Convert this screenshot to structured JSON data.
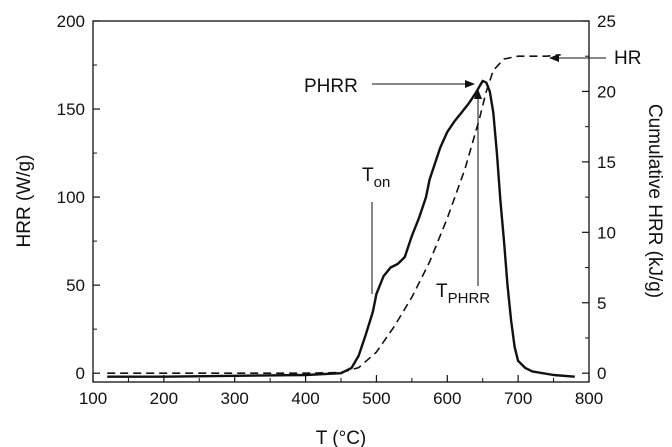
{
  "chart_data": {
    "type": "line",
    "title": "",
    "xlabel": "T (°C)",
    "ylabel": "HRR (W/g)",
    "y2label": "Cumulative HRR (kJ/g)",
    "xlim": [
      100,
      800
    ],
    "ylim": [
      -5,
      200
    ],
    "y2lim": [
      -0.625,
      25
    ],
    "xticks": [
      100,
      200,
      300,
      400,
      500,
      600,
      700,
      800
    ],
    "yticks": [
      0,
      50,
      100,
      150,
      200
    ],
    "y2ticks": [
      0,
      5,
      10,
      15,
      20,
      25
    ],
    "grid": false,
    "series": [
      {
        "axis": "left",
        "style": "solid",
        "points": [
          [
            120,
            -2
          ],
          [
            200,
            -2
          ],
          [
            300,
            -1.5
          ],
          [
            400,
            -1
          ],
          [
            450,
            0
          ],
          [
            465,
            3
          ],
          [
            475,
            10
          ],
          [
            485,
            22
          ],
          [
            495,
            35
          ],
          [
            500,
            45
          ],
          [
            510,
            55
          ],
          [
            520,
            60
          ],
          [
            530,
            62
          ],
          [
            540,
            66
          ],
          [
            550,
            78
          ],
          [
            560,
            88
          ],
          [
            570,
            100
          ],
          [
            575,
            110
          ],
          [
            590,
            128
          ],
          [
            600,
            137
          ],
          [
            610,
            143
          ],
          [
            620,
            148
          ],
          [
            630,
            153
          ],
          [
            640,
            159
          ],
          [
            650,
            166
          ],
          [
            655,
            165
          ],
          [
            660,
            160
          ],
          [
            665,
            148
          ],
          [
            670,
            125
          ],
          [
            675,
            98
          ],
          [
            680,
            75
          ],
          [
            685,
            50
          ],
          [
            690,
            30
          ],
          [
            695,
            15
          ],
          [
            700,
            7
          ],
          [
            710,
            3
          ],
          [
            720,
            1
          ],
          [
            750,
            -1
          ],
          [
            780,
            -2
          ]
        ]
      },
      {
        "axis": "right",
        "style": "dashed",
        "points": [
          [
            120,
            0
          ],
          [
            300,
            0
          ],
          [
            400,
            0
          ],
          [
            450,
            0.05
          ],
          [
            475,
            0.4
          ],
          [
            500,
            1.5
          ],
          [
            525,
            3.3
          ],
          [
            550,
            5.4
          ],
          [
            575,
            7.9
          ],
          [
            600,
            11.0
          ],
          [
            625,
            14.5
          ],
          [
            645,
            18.0
          ],
          [
            655,
            20.0
          ],
          [
            665,
            21.5
          ],
          [
            680,
            22.3
          ],
          [
            700,
            22.5
          ],
          [
            740,
            22.5
          ],
          [
            760,
            22.6
          ]
        ]
      }
    ],
    "annotations": {
      "pk": {
        "label": "PHRR"
      },
      "hr": {
        "label": "HR"
      },
      "onset": {
        "main": "T",
        "sub": "on"
      },
      "tp": {
        "main": "T",
        "sub": "PHRR"
      }
    }
  }
}
